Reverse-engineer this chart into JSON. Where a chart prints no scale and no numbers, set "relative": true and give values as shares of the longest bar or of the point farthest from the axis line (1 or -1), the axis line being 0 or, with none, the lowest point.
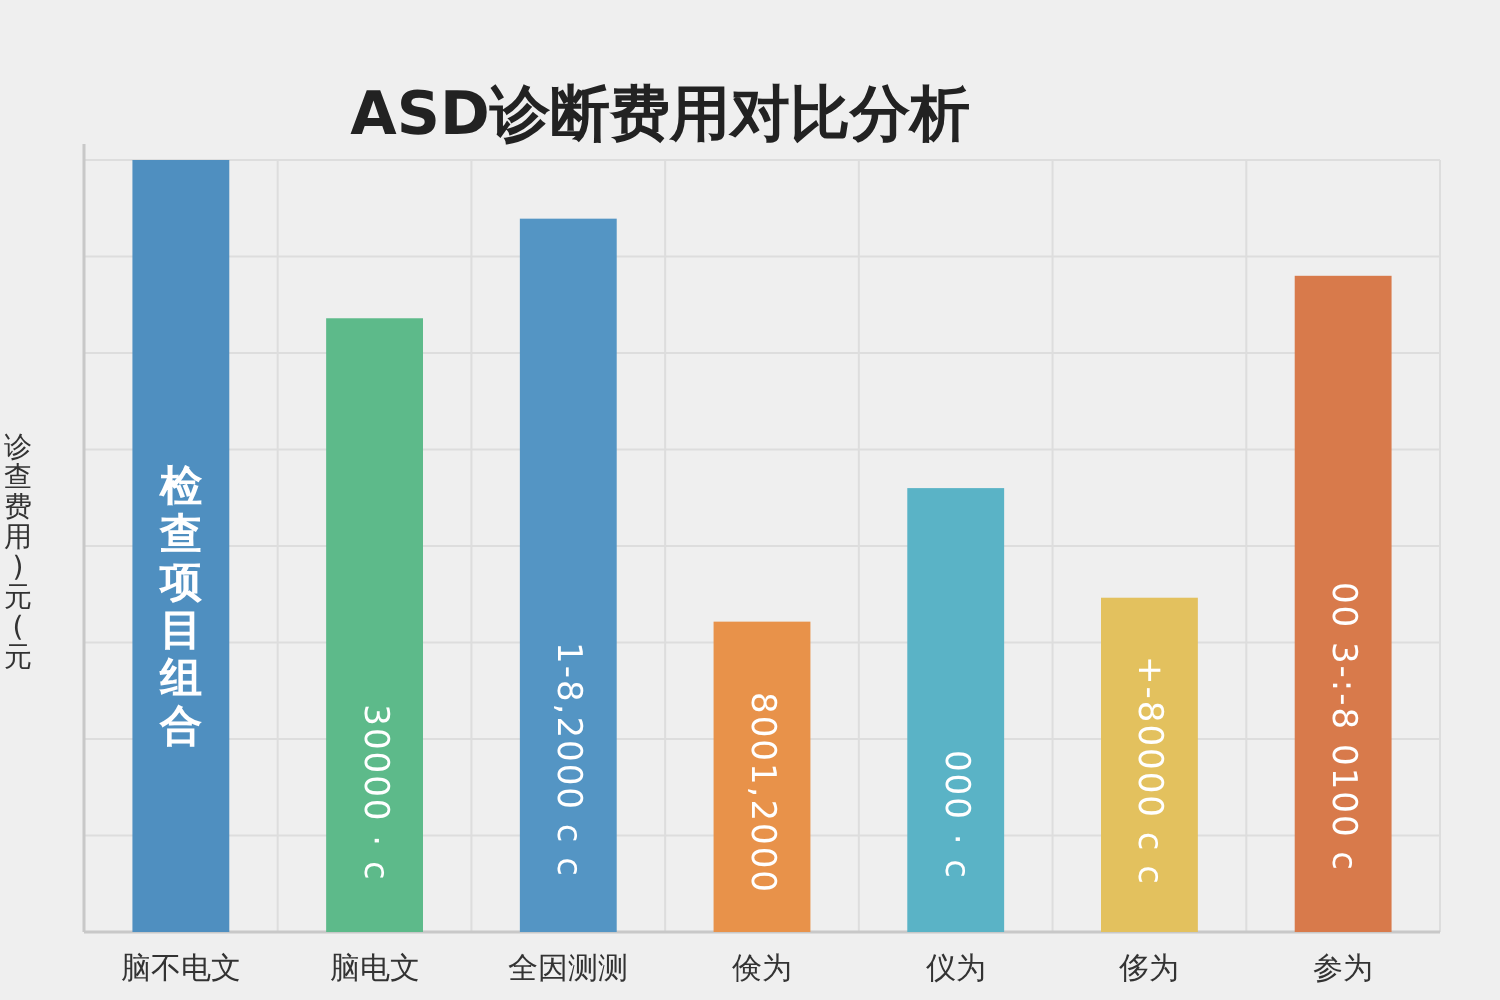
{
  "chart_data": {
    "type": "bar",
    "title": "ASD诊断费用对比分析",
    "ylabel": "诊查费用)元(元",
    "relative": true,
    "grid": true,
    "categories": [
      "脑不电文",
      "脑电文",
      "全因测测",
      "倹为",
      "仪为",
      "侈为",
      "参为"
    ],
    "values": [
      1,
      0.795,
      0.924,
      0.402,
      0.575,
      0.433,
      0.85
    ],
    "colors": [
      "#4f8fc0",
      "#5dba8a",
      "#5495c4",
      "#e8924a",
      "#5ab3c6",
      "#e3c15e",
      "#d87a4b"
    ],
    "annotations": [
      "检查项目组合",
      "30000 · c",
      "1-8,2000 c c",
      "8001,2000",
      "000 · c",
      "+-80000 c c",
      "00 3-:-8 0100 c"
    ]
  }
}
